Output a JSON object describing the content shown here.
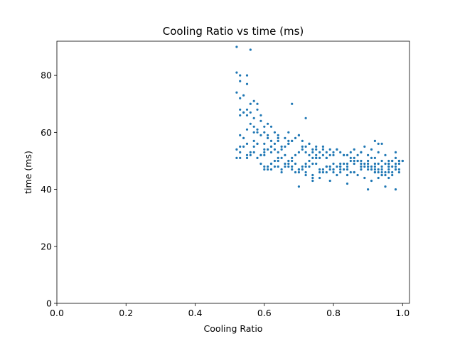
{
  "chart_data": {
    "type": "scatter",
    "title": "Cooling Ratio vs time (ms)",
    "xlabel": "Cooling Ratio",
    "ylabel": "time (ms)",
    "xlim": [
      0.0,
      1.02
    ],
    "ylim": [
      0,
      92
    ],
    "xticks": [
      0.0,
      0.2,
      0.4,
      0.6,
      0.8,
      1.0
    ],
    "xtick_labels": [
      "0.0",
      "0.2",
      "0.4",
      "0.6",
      "0.8",
      "1.0"
    ],
    "yticks": [
      0,
      20,
      40,
      60,
      80
    ],
    "ytick_labels": [
      "0",
      "20",
      "40",
      "60",
      "80"
    ],
    "grid": false,
    "marker_color": "#1f77b4",
    "series": [
      {
        "x": [
          0.52,
          0.52,
          0.53,
          0.55,
          0.56,
          0.52,
          0.53,
          0.53,
          0.54,
          0.55,
          0.53,
          0.54,
          0.55,
          0.56,
          0.57,
          0.58,
          0.53,
          0.54,
          0.55,
          0.56,
          0.57,
          0.58,
          0.59,
          0.53,
          0.54,
          0.55,
          0.56,
          0.57,
          0.58,
          0.59,
          0.6,
          0.53,
          0.55,
          0.57,
          0.58,
          0.59,
          0.6,
          0.61,
          0.62,
          0.52,
          0.53,
          0.55,
          0.57,
          0.58,
          0.6,
          0.61,
          0.62,
          0.63,
          0.64,
          0.52,
          0.54,
          0.56,
          0.58,
          0.6,
          0.62,
          0.64,
          0.66,
          0.67,
          0.68,
          0.53,
          0.55,
          0.57,
          0.59,
          0.6,
          0.62,
          0.63,
          0.65,
          0.67,
          0.68,
          0.7,
          0.72,
          0.56,
          0.58,
          0.59,
          0.6,
          0.61,
          0.62,
          0.63,
          0.64,
          0.65,
          0.66,
          0.67,
          0.68,
          0.69,
          0.7,
          0.71,
          0.72,
          0.73,
          0.74,
          0.75,
          0.59,
          0.6,
          0.61,
          0.62,
          0.63,
          0.64,
          0.65,
          0.66,
          0.67,
          0.68,
          0.69,
          0.7,
          0.71,
          0.72,
          0.73,
          0.74,
          0.75,
          0.76,
          0.77,
          0.78,
          0.79,
          0.6,
          0.61,
          0.62,
          0.63,
          0.64,
          0.65,
          0.66,
          0.67,
          0.68,
          0.69,
          0.7,
          0.71,
          0.72,
          0.73,
          0.74,
          0.75,
          0.76,
          0.77,
          0.78,
          0.79,
          0.8,
          0.81,
          0.82,
          0.62,
          0.64,
          0.66,
          0.68,
          0.7,
          0.72,
          0.74,
          0.76,
          0.78,
          0.8,
          0.82,
          0.84,
          0.86,
          0.88,
          0.9,
          0.92,
          0.94,
          0.96,
          0.65,
          0.67,
          0.69,
          0.71,
          0.73,
          0.75,
          0.77,
          0.79,
          0.81,
          0.83,
          0.85,
          0.87,
          0.89,
          0.91,
          0.93,
          0.95,
          0.97,
          0.99,
          0.68,
          0.7,
          0.72,
          0.74,
          0.76,
          0.78,
          0.8,
          0.82,
          0.84,
          0.86,
          0.88,
          0.9,
          0.92,
          0.94,
          0.96,
          0.98,
          0.72,
          0.74,
          0.76,
          0.78,
          0.8,
          0.82,
          0.84,
          0.86,
          0.88,
          0.9,
          0.92,
          0.94,
          0.96,
          0.98,
          1.0,
          0.75,
          0.77,
          0.79,
          0.81,
          0.83,
          0.85,
          0.87,
          0.89,
          0.91,
          0.93,
          0.95,
          0.97,
          0.99,
          0.78,
          0.8,
          0.82,
          0.84,
          0.86,
          0.88,
          0.9,
          0.92,
          0.94,
          0.96,
          0.98,
          1.0,
          0.8,
          0.82,
          0.84,
          0.86,
          0.88,
          0.9,
          0.92,
          0.94,
          0.96,
          0.98,
          0.83,
          0.85,
          0.87,
          0.89,
          0.91,
          0.93,
          0.95,
          0.97,
          0.99,
          0.86,
          0.88,
          0.9,
          0.92,
          0.94,
          0.96,
          0.98,
          0.89,
          0.91,
          0.93,
          0.95,
          0.97,
          0.99,
          0.92,
          0.94,
          0.96,
          0.98,
          0.7,
          0.74,
          0.79,
          0.84,
          0.9,
          0.95,
          0.98,
          0.75,
          0.83,
          0.88,
          0.93,
          0.97,
          0.57,
          0.61,
          0.64,
          0.67,
          0.71,
          0.73,
          0.77,
          0.81,
          0.85,
          0.87,
          0.91,
          0.93,
          0.96,
          0.99
        ],
        "y": [
          90,
          81,
          80,
          80,
          89,
          74,
          72,
          78,
          73,
          77,
          68,
          67,
          68,
          70,
          71,
          70,
          66,
          67,
          66,
          67,
          65,
          68,
          66,
          59,
          58,
          61,
          63,
          62,
          61,
          64,
          62,
          55,
          56,
          57,
          60,
          59,
          60,
          63,
          62,
          51,
          53,
          52,
          55,
          56,
          56,
          58,
          57,
          60,
          59,
          54,
          55,
          53,
          56,
          54,
          55,
          57,
          58,
          60,
          70,
          51,
          51,
          53,
          52,
          52,
          53,
          54,
          55,
          56,
          57,
          59,
          65,
          52,
          51,
          52,
          53,
          54,
          55,
          56,
          53,
          54,
          55,
          56,
          57,
          58,
          59,
          55,
          53,
          56,
          54,
          55,
          49,
          48,
          47,
          49,
          48,
          50,
          51,
          52,
          50,
          51,
          52,
          53,
          54,
          55,
          52,
          53,
          54,
          51,
          52,
          53,
          54,
          47,
          48,
          49,
          50,
          51,
          47,
          48,
          49,
          50,
          46,
          47,
          48,
          49,
          50,
          51,
          52,
          53,
          54,
          51,
          52,
          53,
          54,
          49,
          47,
          48,
          49,
          48,
          47,
          48,
          49,
          47,
          48,
          46,
          47,
          48,
          49,
          48,
          47,
          46,
          45,
          44,
          46,
          48,
          49,
          47,
          48,
          49,
          47,
          48,
          45,
          47,
          46,
          45,
          44,
          43,
          44,
          45,
          46,
          47,
          47,
          46,
          45,
          44,
          46,
          48,
          47,
          46,
          45,
          46,
          47,
          48,
          46,
          45,
          48,
          47,
          46,
          45,
          44,
          46,
          47,
          48,
          49,
          50,
          49,
          48,
          47,
          46,
          48,
          49,
          50,
          51,
          46,
          47,
          48,
          49,
          50,
          50,
          49,
          48,
          47,
          46,
          45,
          50,
          51,
          52,
          53,
          52,
          51,
          50,
          49,
          48,
          47,
          46,
          51,
          50,
          49,
          48,
          47,
          46,
          48,
          50,
          49,
          48,
          47,
          53,
          52,
          51,
          50,
          48,
          47,
          46,
          49,
          48,
          46,
          54,
          53,
          52,
          51,
          50,
          49,
          48,
          55,
          54,
          53,
          52,
          50,
          49,
          57,
          56,
          49,
          47,
          41,
          43,
          43,
          42,
          40,
          41,
          40,
          51,
          52,
          53,
          49,
          50,
          60,
          59,
          58,
          57,
          57,
          56,
          55,
          54,
          53,
          52,
          51,
          56,
          50,
          50
        ]
      }
    ]
  }
}
